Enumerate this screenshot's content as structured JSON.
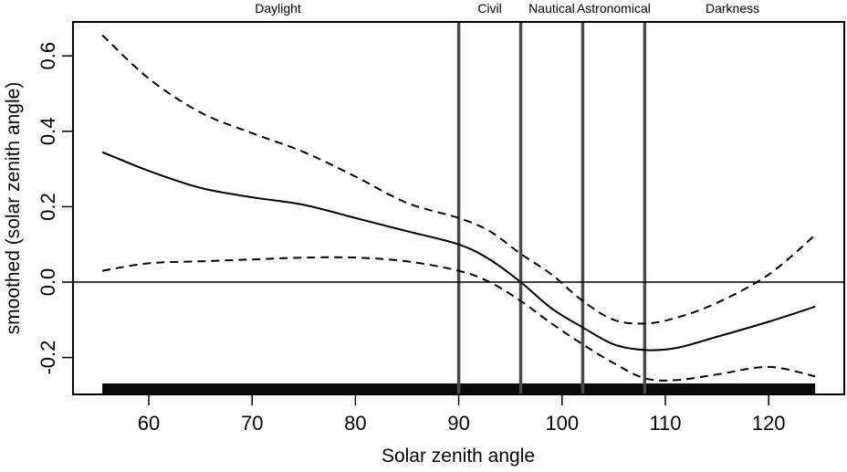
{
  "chart_data": {
    "type": "line",
    "title": "",
    "xlabel": "Solar zenith angle",
    "ylabel": "smoothed (solar zenith angle)",
    "xlim": [
      52,
      127
    ],
    "ylim": [
      -0.3,
      0.68
    ],
    "x_ticks": [
      60,
      70,
      80,
      90,
      100,
      110,
      120
    ],
    "y_ticks": [
      -0.2,
      0.0,
      0.2,
      0.4,
      0.6
    ],
    "x_tick_labels": [
      "60",
      "70",
      "80",
      "90",
      "100",
      "110",
      "120"
    ],
    "y_tick_labels": [
      "-0.2",
      "0.0",
      "0.2",
      "0.4",
      "0.6"
    ],
    "reference_hline": 0.0,
    "phase_boundaries": [
      90,
      96,
      102,
      108
    ],
    "phase_labels": [
      {
        "label": "Daylight",
        "x": 72.5
      },
      {
        "label": "Civil",
        "x": 93
      },
      {
        "label": "Nautical",
        "x": 99
      },
      {
        "label": "Astronomical",
        "x": 105
      },
      {
        "label": "Darkness",
        "x": 116.5
      }
    ],
    "rug_range": [
      55.5,
      124.5
    ],
    "series": [
      {
        "name": "smooth estimate",
        "style": "solid",
        "x": [
          55.5,
          60,
          65,
          70,
          75,
          80,
          85,
          90,
          93,
          96,
          99,
          102,
          105,
          108,
          111,
          115,
          120,
          124.5
        ],
        "y": [
          0.345,
          0.295,
          0.25,
          0.225,
          0.205,
          0.17,
          0.135,
          0.1,
          0.06,
          0.0,
          -0.07,
          -0.12,
          -0.165,
          -0.18,
          -0.175,
          -0.145,
          -0.105,
          -0.065
        ]
      },
      {
        "name": "upper confidence band",
        "style": "dashed",
        "x": [
          55.5,
          60,
          65,
          70,
          75,
          80,
          85,
          90,
          93,
          96,
          99,
          102,
          105,
          108,
          111,
          115,
          120,
          124.5
        ],
        "y": [
          0.655,
          0.54,
          0.45,
          0.395,
          0.345,
          0.28,
          0.21,
          0.17,
          0.135,
          0.075,
          0.02,
          -0.05,
          -0.1,
          -0.11,
          -0.095,
          -0.055,
          0.02,
          0.125
        ]
      },
      {
        "name": "lower confidence band",
        "style": "dashed",
        "x": [
          55.5,
          60,
          65,
          70,
          75,
          80,
          85,
          90,
          93,
          96,
          99,
          102,
          105,
          108,
          111,
          115,
          120,
          124.5
        ],
        "y": [
          0.03,
          0.05,
          0.055,
          0.06,
          0.065,
          0.065,
          0.055,
          0.03,
          0.0,
          -0.05,
          -0.11,
          -0.165,
          -0.215,
          -0.255,
          -0.26,
          -0.245,
          -0.225,
          -0.25
        ]
      }
    ]
  }
}
